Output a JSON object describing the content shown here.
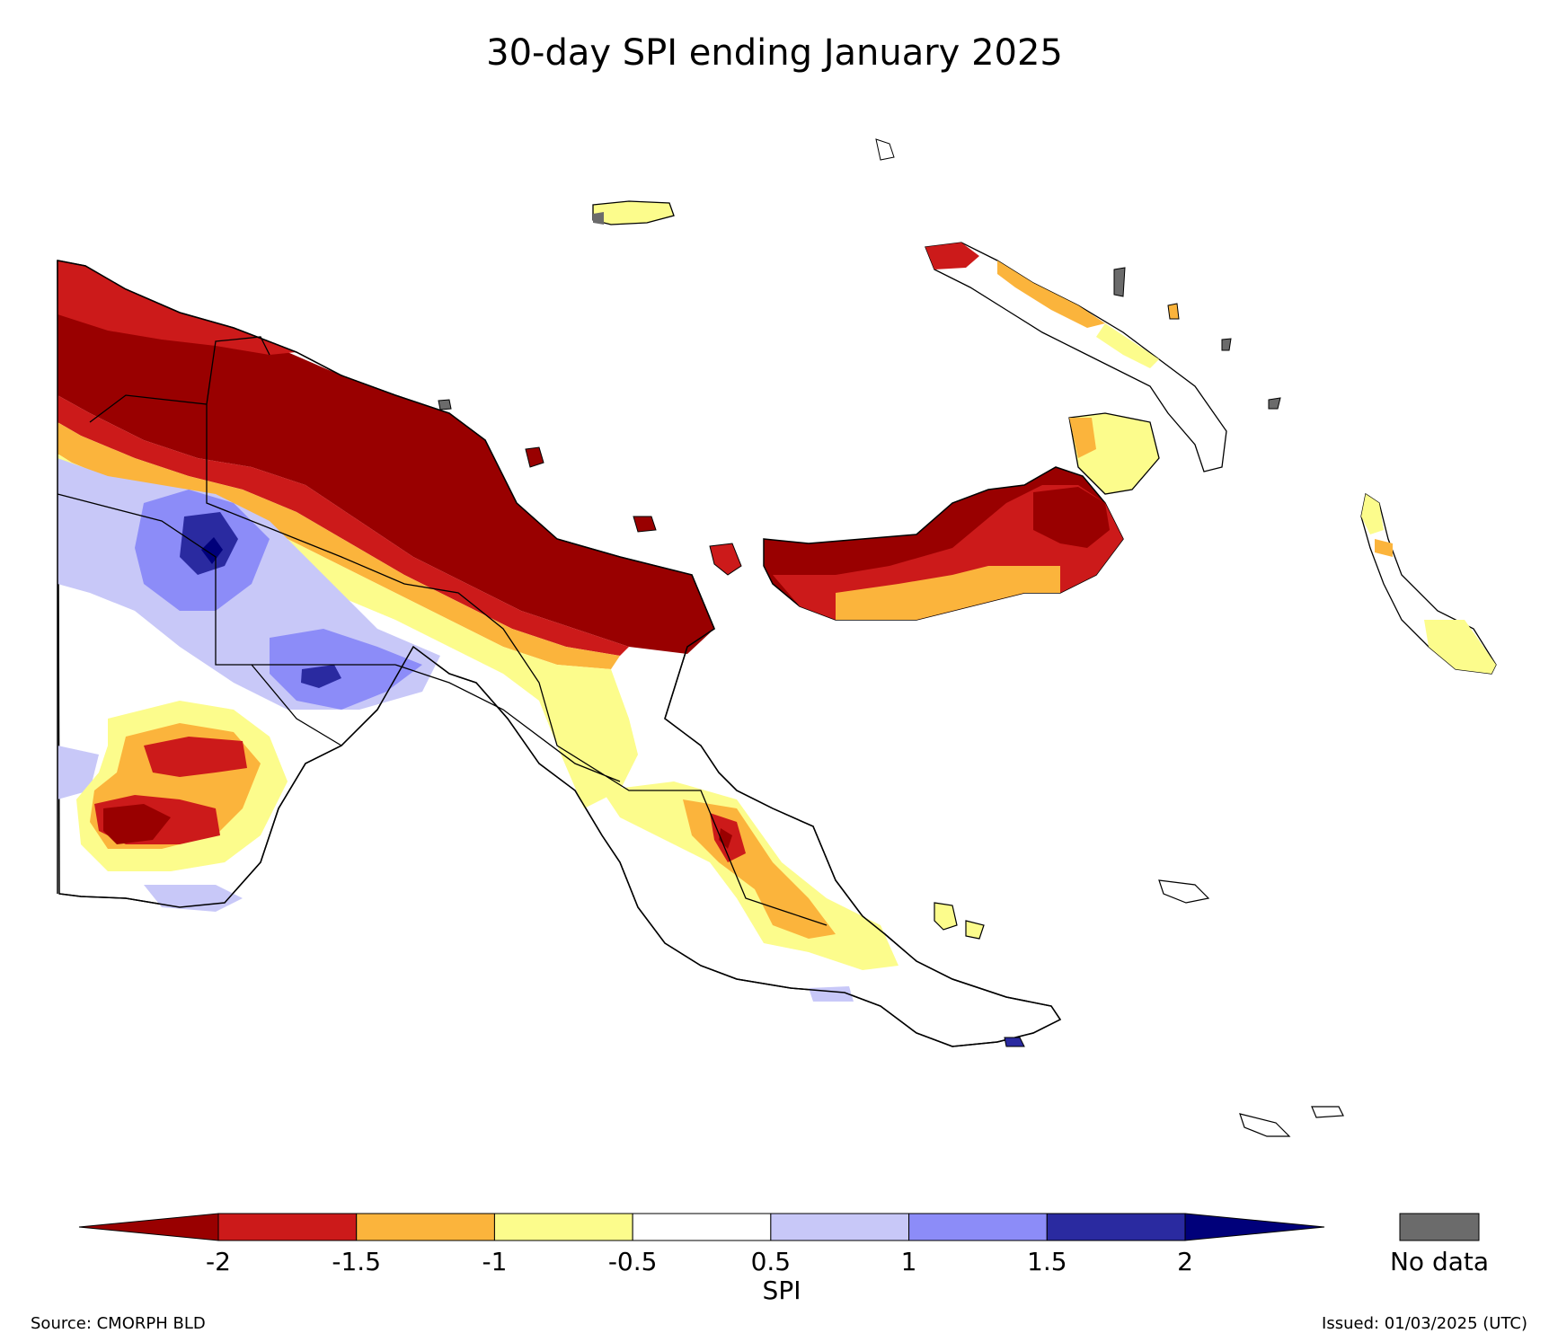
{
  "title": "30-day SPI ending January 2025",
  "colorbar": {
    "label": "SPI",
    "ticks": [
      "-2",
      "-1.5",
      "-1",
      "-0.5",
      "0.5",
      "1",
      "1.5",
      "2"
    ],
    "bins": [
      {
        "range": "< -2",
        "color": "#990000"
      },
      {
        "range": "-2 to -1.5",
        "color": "#cc1a1a"
      },
      {
        "range": "-1.5 to -1",
        "color": "#fbb43c"
      },
      {
        "range": "-1 to -0.5",
        "color": "#fcfc8c"
      },
      {
        "range": "-0.5 to 0.5",
        "color": "#ffffff"
      },
      {
        "range": "0.5 to 1",
        "color": "#c8c8f8"
      },
      {
        "range": "1 to 1.5",
        "color": "#8c8cf8"
      },
      {
        "range": "1.5 to 2",
        "color": "#2a2aa0"
      },
      {
        "range": "> 2",
        "color": "#00007a"
      }
    ],
    "no_data_color": "#6b6b6b",
    "no_data_label": "No data"
  },
  "footer": {
    "source": "Source: CMORPH BLD",
    "issued": "Issued: 01/03/2025 (UTC)"
  }
}
